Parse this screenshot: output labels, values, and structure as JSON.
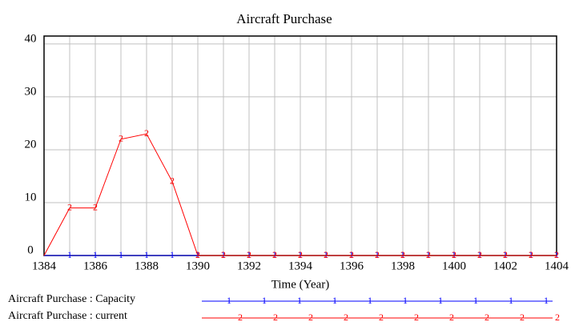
{
  "chart_data": {
    "type": "line",
    "title": "Aircraft Purchase",
    "x_label": "Time (Year)",
    "x": [
      1384,
      1385,
      1386,
      1387,
      1388,
      1389,
      1390,
      1391,
      1392,
      1393,
      1394,
      1395,
      1396,
      1397,
      1398,
      1399,
      1400,
      1401,
      1402,
      1403,
      1404
    ],
    "series": [
      {
        "name": "Aircraft Purchase : Capacity",
        "color": "#0000ff",
        "marker": "1",
        "values": [
          0,
          0,
          0,
          0,
          0,
          0,
          0,
          0,
          0,
          0,
          0,
          0,
          0,
          0,
          0,
          0,
          0,
          0,
          0,
          0,
          0
        ]
      },
      {
        "name": "Aircraft Purchase : current",
        "color": "#ff0000",
        "marker": "2",
        "values": [
          0,
          9,
          9,
          22,
          23,
          14,
          0,
          0,
          0,
          0,
          0,
          0,
          0,
          0,
          0,
          0,
          0,
          0,
          0,
          0,
          0
        ]
      }
    ],
    "xlim": [
      1384,
      1404
    ],
    "xticks": [
      1384,
      1386,
      1388,
      1390,
      1392,
      1394,
      1396,
      1398,
      1400,
      1402,
      1404
    ],
    "ylim": [
      0,
      41.5
    ],
    "yticks": [
      0,
      10,
      20,
      30,
      40
    ],
    "grid": true
  }
}
